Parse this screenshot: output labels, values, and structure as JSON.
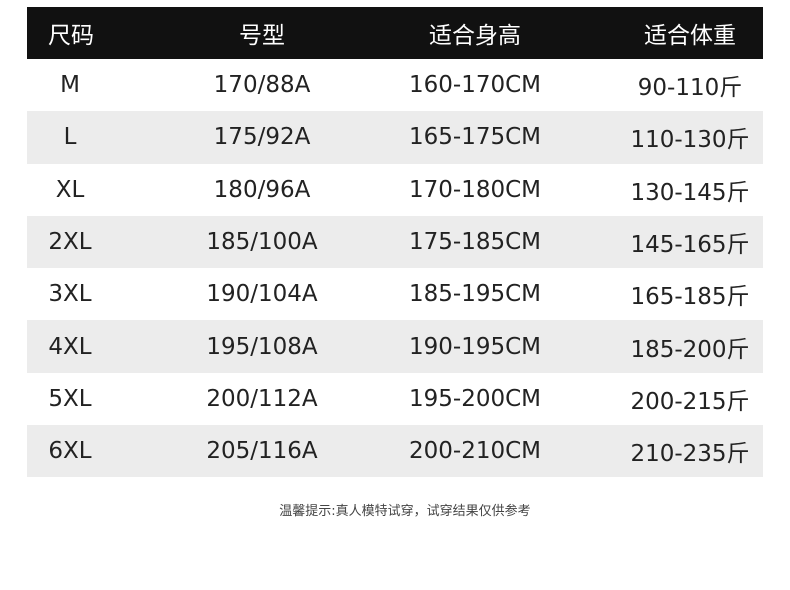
{
  "header": [
    "尺码",
    "号型",
    "适合身高",
    "适合体重"
  ],
  "rows": [
    [
      "M",
      "170/88A",
      "160-170CM",
      "90-110斤"
    ],
    [
      "L",
      "175/92A",
      "165-175CM",
      "110-130斤"
    ],
    [
      "XL",
      "180/96A",
      "170-180CM",
      "130-145斤"
    ],
    [
      "2XL",
      "185/100A",
      "175-185CM",
      "145-165斤"
    ],
    [
      "3XL",
      "190/104A",
      "185-195CM",
      "165-185斤"
    ],
    [
      "4XL",
      "195/108A",
      "190-195CM",
      "185-200斤"
    ],
    [
      "5XL",
      "200/112A",
      "195-200CM",
      "200-215斤"
    ],
    [
      "6XL",
      "205/116A",
      "200-210CM",
      "210-235斤"
    ]
  ],
  "footer": "温馨提示:真人模特试穿，试穿结果仅供参考"
}
